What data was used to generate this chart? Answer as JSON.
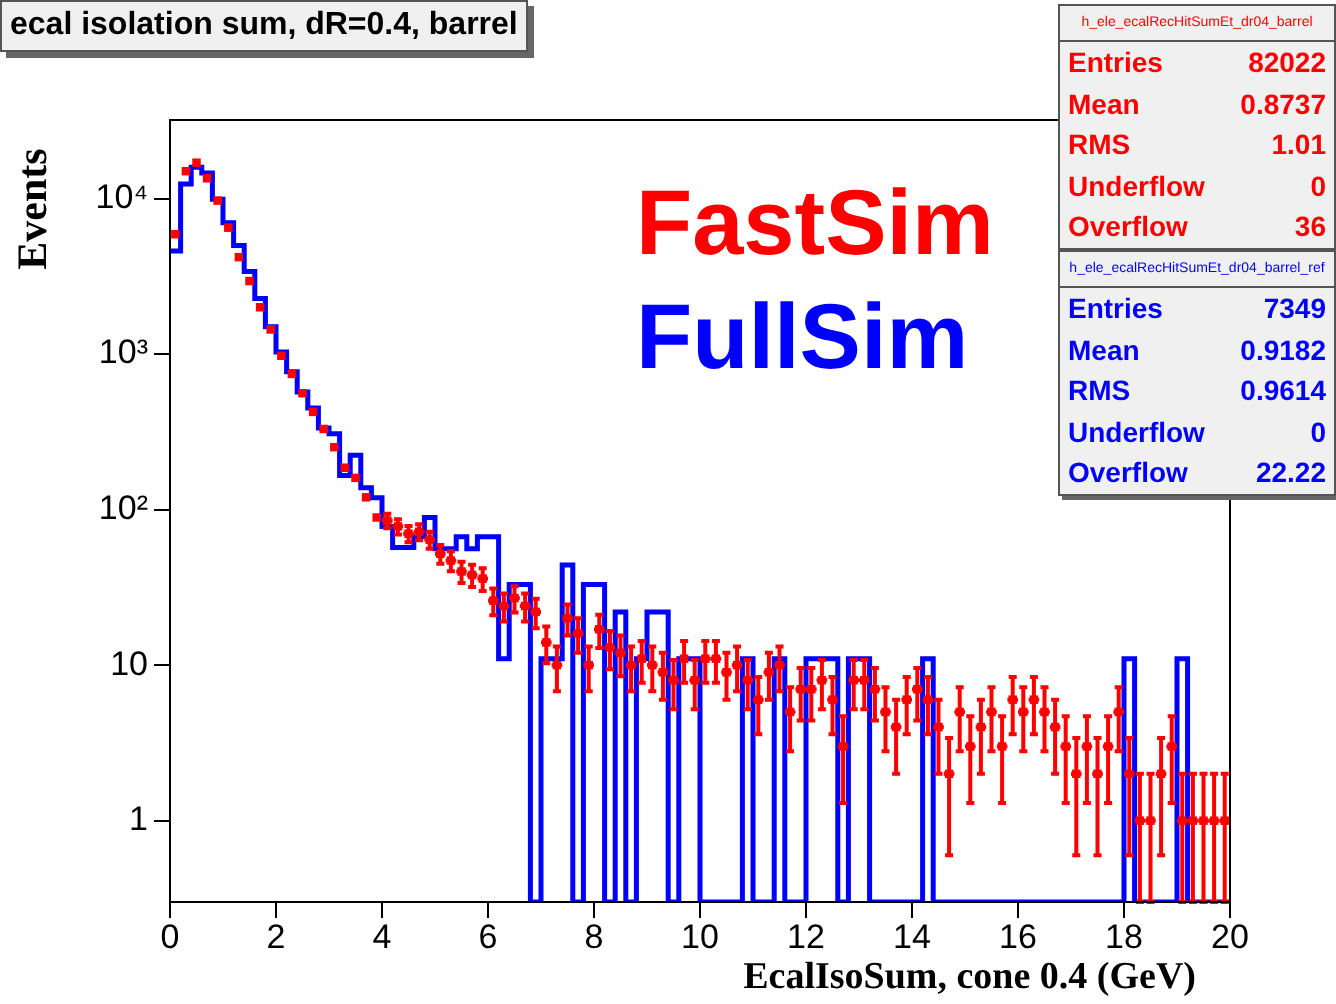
{
  "chart_data": {
    "type": "histogram",
    "title": "ecal isolation sum, dR=0.4, barrel",
    "xlabel": "EcalIsoSum, cone 0.4 (GeV)",
    "ylabel": "Events",
    "bins": [
      0,
      0.2,
      0.4,
      0.6,
      0.8,
      1,
      1.2,
      1.4,
      1.6,
      1.8,
      2,
      2.2,
      2.4,
      2.6,
      2.8,
      3,
      3.2,
      3.4,
      3.6,
      3.8,
      4,
      4.2,
      4.4,
      4.6,
      4.8,
      5,
      5.2,
      5.4,
      5.6,
      5.8,
      6,
      6.2,
      6.4,
      6.6,
      6.8,
      7,
      7.2,
      7.4,
      7.6,
      7.8,
      8,
      8.2,
      8.4,
      8.6,
      8.8,
      9,
      9.2,
      9.4,
      9.6,
      9.8,
      10,
      10.2,
      10.4,
      10.6,
      10.8,
      11,
      11.2,
      11.4,
      11.6,
      11.8,
      12,
      12.2,
      12.4,
      12.6,
      12.8,
      13,
      13.2,
      13.4,
      13.6,
      13.8,
      14,
      14.2,
      14.4,
      14.6,
      14.8,
      15,
      15.2,
      15.4,
      15.6,
      15.8,
      16,
      16.2,
      16.4,
      16.6,
      16.8,
      17,
      17.2,
      17.4,
      17.6,
      17.8,
      18,
      18.2,
      18.4,
      18.6,
      18.8,
      19,
      19.2,
      19.4,
      19.6,
      19.8,
      20
    ],
    "series": [
      {
        "name": "FastSim",
        "type": "scatter",
        "color": "#ff0000",
        "x": [
          0.1,
          0.3,
          0.5,
          0.7,
          0.9,
          1.1,
          1.3,
          1.5,
          1.7,
          1.9,
          2.1,
          2.3,
          2.5,
          2.7,
          2.9,
          3.1,
          3.3,
          3.5,
          3.7,
          3.9,
          4.1,
          4.3,
          4.5,
          4.7,
          4.9,
          5.1,
          5.3,
          5.5,
          5.7,
          5.9,
          6.1,
          6.3,
          6.5,
          6.7,
          6.9,
          7.1,
          7.3,
          7.5,
          7.7,
          7.9,
          8.1,
          8.3,
          8.5,
          8.7,
          8.9,
          9.1,
          9.3,
          9.5,
          9.7,
          9.9,
          10.1,
          10.3,
          10.5,
          10.7,
          10.9,
          11.1,
          11.3,
          11.5,
          11.7,
          11.9,
          12.1,
          12.3,
          12.5,
          12.7,
          12.9,
          13.1,
          13.3,
          13.5,
          13.7,
          13.9,
          14.1,
          14.3,
          14.5,
          14.7,
          14.9,
          15.1,
          15.3,
          15.5,
          15.7,
          15.9,
          16.1,
          16.3,
          16.5,
          16.7,
          16.9,
          17.1,
          17.3,
          17.5,
          17.7,
          17.9,
          18.1,
          18.3,
          18.5,
          18.7,
          18.9,
          19.1,
          19.3,
          19.5,
          19.7,
          19.9
        ],
        "values": [
          5900,
          15000,
          17000,
          13500,
          9700,
          6500,
          4200,
          2950,
          2000,
          1440,
          975,
          745,
          560,
          425,
          330,
          252,
          186,
          160,
          120,
          89,
          85,
          78,
          70,
          72,
          64,
          52,
          47,
          40,
          38,
          36,
          26,
          24,
          27,
          24,
          22,
          14,
          10,
          20,
          16,
          10,
          17,
          13,
          12,
          10,
          11,
          10,
          9,
          8,
          11,
          8,
          11,
          11,
          9,
          10,
          8,
          6,
          9,
          10,
          5,
          7,
          7,
          8,
          6,
          3,
          8,
          8,
          7,
          5,
          4,
          6,
          7,
          6,
          4,
          2,
          5,
          3,
          4,
          5,
          3,
          6,
          5,
          6,
          5,
          4,
          3,
          2,
          3,
          2,
          3,
          5,
          2,
          1,
          1,
          2,
          3,
          1,
          1,
          1,
          1,
          1
        ],
        "errors": [
          null,
          null,
          null,
          null,
          null,
          null,
          null,
          null,
          null,
          null,
          null,
          null,
          null,
          null,
          null,
          null,
          null,
          null,
          null,
          null,
          9.2,
          8.8,
          8.4,
          8.5,
          8,
          7.2,
          6.9,
          6.3,
          6.2,
          6,
          5.1,
          4.9,
          5.2,
          4.9,
          4.7,
          3.7,
          3.2,
          4.5,
          4,
          3.2,
          4.1,
          3.6,
          3.5,
          3.2,
          3.3,
          3.2,
          3,
          2.8,
          3.3,
          2.8,
          3.3,
          3.3,
          3,
          3.2,
          2.8,
          2.4,
          3,
          3.2,
          2.2,
          2.6,
          2.6,
          2.8,
          2.4,
          1.7,
          2.8,
          2.8,
          2.6,
          2.2,
          2,
          2.4,
          2.6,
          2.4,
          2,
          1.4,
          2.2,
          1.7,
          2,
          2.2,
          1.7,
          2.4,
          2.2,
          2.4,
          2.2,
          2,
          1.7,
          1.4,
          1.7,
          1.4,
          1.7,
          2.2,
          1.4,
          [
            0.3,
            2
          ],
          [
            0.3,
            2
          ],
          1.4,
          1.7,
          [
            0.3,
            2
          ],
          [
            0.3,
            2
          ],
          [
            0.3,
            2
          ],
          [
            0.3,
            2
          ],
          [
            0.3,
            2
          ]
        ],
        "xerrors": [
          null,
          null,
          null,
          null,
          null,
          null,
          null,
          null,
          null,
          null,
          null,
          null,
          null,
          null,
          null,
          null,
          null,
          null,
          null,
          null,
          0.1,
          0.1,
          0.1,
          0.1,
          0.1,
          0.1,
          0.1,
          0.1,
          0.1,
          0.1,
          0.1,
          0.1,
          0.1,
          0.1,
          0.1,
          0.1,
          0.1,
          0.1,
          0.1,
          0.1,
          0.1,
          0.1,
          0.1,
          0.1,
          null,
          0.1,
          0.1,
          0.1,
          null,
          0.1,
          0.1,
          0.1,
          0.1,
          0.1,
          0.1,
          0.1,
          0.1,
          0.1,
          0.1,
          0.1,
          0.1,
          0.1,
          0.1,
          0.1,
          0.1,
          0.1,
          0.1,
          0.1,
          0.1,
          0.1,
          0.1,
          0.1,
          0.1,
          0.1,
          0.1,
          0.1,
          0.1,
          0.1,
          0.1,
          0.1,
          0.1,
          0.1,
          0.1,
          0.1,
          0.1,
          0.1,
          0.1,
          0.1,
          0.1,
          0.1,
          0.1,
          0.1,
          0.1,
          0.1,
          0.1,
          0.1,
          0.1,
          0.1,
          0.1,
          0.1
        ]
      },
      {
        "name": "FullSim",
        "color": "#0000ff",
        "values": [
          4600,
          12400,
          15900,
          14600,
          9900,
          7000,
          5000,
          3400,
          2280,
          1500,
          1030,
          770,
          570,
          450,
          335,
          307,
          166,
          224,
          138,
          119,
          78,
          57,
          57,
          67,
          89,
          56,
          56,
          67,
          56,
          67,
          67,
          11,
          33,
          33,
          null,
          11,
          11,
          44,
          null,
          33,
          33,
          null,
          22,
          null,
          11,
          22,
          22,
          null,
          11,
          11,
          null,
          null,
          null,
          null,
          11,
          null,
          null,
          11,
          null,
          null,
          11,
          11,
          11,
          null,
          11,
          11,
          null,
          null,
          null,
          null,
          null,
          11,
          null,
          null,
          null,
          null,
          null,
          null,
          null,
          null,
          null,
          null,
          null,
          null,
          null,
          null,
          null,
          null,
          null,
          null,
          11,
          null,
          null,
          null,
          null,
          11,
          null,
          null,
          null,
          null
        ]
      }
    ],
    "xlim": [
      0,
      20
    ],
    "xticks": [
      0,
      2,
      4,
      6,
      8,
      10,
      12,
      14,
      16,
      18,
      20
    ],
    "ylim": [
      0.3,
      32000
    ],
    "log": "y",
    "yticks": [
      1,
      10,
      {
        "value": 100,
        "label": "10²"
      },
      {
        "value": 1000,
        "label": "10³"
      },
      {
        "value": 10000,
        "label": "10⁴"
      }
    ],
    "marker": "square",
    "grid": false,
    "legend": false,
    "annotations": [
      "h_ele_ecalRecHitSumEt_dr04_barrel",
      "Entries",
      "82022",
      "Mean",
      "0.8737",
      "RMS",
      "1.01",
      "Underflow",
      "0",
      "Overflow",
      "36",
      "h_ele_ecalRecHitSumEt_dr04_barrel_ref",
      "Entries",
      "7349",
      "Mean",
      "0.9182",
      "RMS",
      "0.9614",
      "Underflow",
      "0",
      "Overflow",
      "22.22"
    ]
  }
}
